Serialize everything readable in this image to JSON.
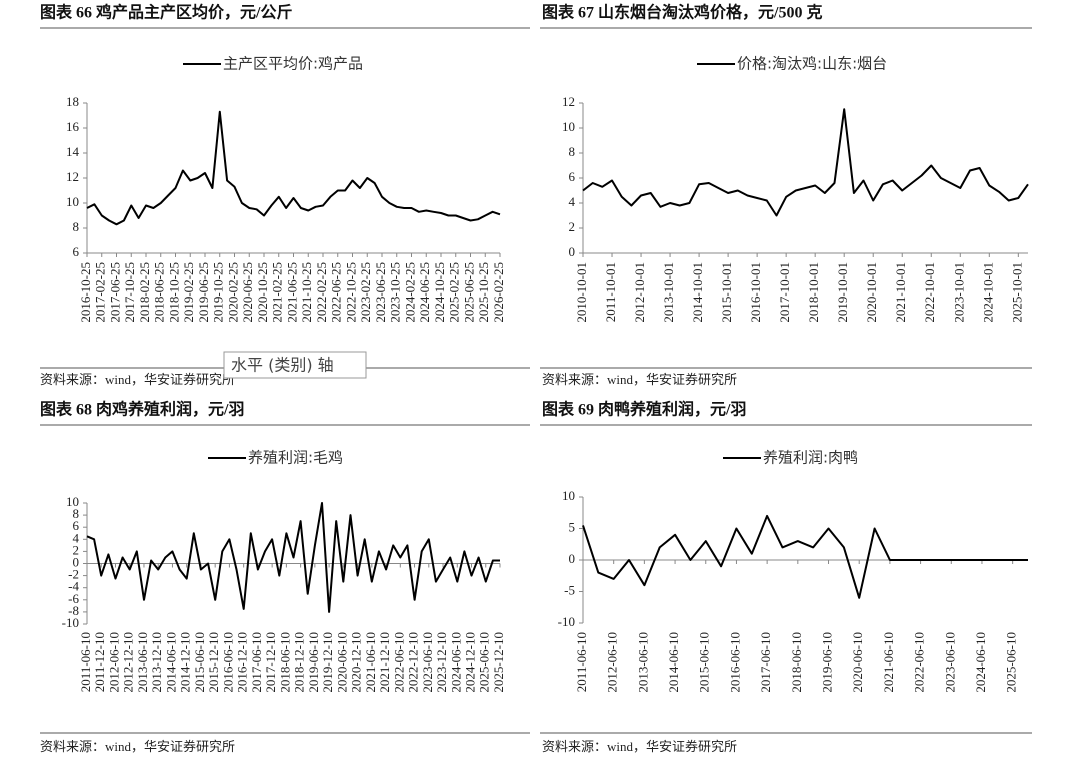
{
  "tooltip": "水平 (类别) 轴",
  "chart_data": [
    {
      "type": "line",
      "title": "图表 66 鸡产品主产区均价，元/公斤",
      "source": "资料来源：wind，华安证券研究所",
      "categories": [
        "2016-10-25",
        null,
        "2017-02-25",
        null,
        "2017-06-25",
        null,
        "2017-10-25",
        null,
        "2018-02-25",
        null,
        "2018-06-25",
        null,
        "2018-10-25",
        null,
        "2019-02-25",
        null,
        "2019-06-25",
        null,
        "2019-10-25",
        null,
        "2020-02-25",
        null,
        "2020-06-25",
        null,
        "2020-10-25",
        null,
        "2021-02-25",
        null,
        "2021-06-25",
        null,
        "2021-10-25",
        null,
        "2022-02-25",
        null,
        "2022-06-25",
        null,
        "2022-10-25",
        null,
        "2023-02-25",
        null,
        "2023-06-25",
        null,
        "2023-10-25",
        null,
        "2024-02-25",
        null,
        "2024-06-25",
        null,
        "2024-10-25",
        null,
        "2025-02-25",
        null,
        "2025-06-25",
        null,
        "2025-10-25",
        null,
        "2026-02-25"
      ],
      "series": [
        {
          "name": "主产区平均价:鸡产品",
          "color": "#000000",
          "values": [
            9.6,
            9.9,
            9.0,
            8.6,
            8.3,
            8.6,
            9.8,
            8.8,
            9.8,
            9.6,
            10.0,
            10.6,
            11.2,
            12.6,
            11.8,
            12.0,
            12.4,
            11.2,
            17.3,
            11.8,
            11.3,
            10.0,
            9.6,
            9.5,
            9.0,
            9.8,
            10.5,
            9.6,
            10.4,
            9.6,
            9.4,
            9.7,
            9.8,
            10.5,
            11.0,
            11.0,
            11.8,
            11.2,
            12.0,
            11.6,
            10.5,
            10.0,
            9.7,
            9.6,
            9.6,
            9.3,
            9.4,
            9.3,
            9.2,
            9.0,
            9.0,
            8.8,
            8.6,
            8.7,
            9.0,
            9.3,
            9.1
          ]
        }
      ],
      "ylim": [
        6,
        18
      ],
      "yticks": [
        6,
        8,
        10,
        12,
        14,
        16,
        18
      ]
    },
    {
      "type": "line",
      "title": "图表 67 山东烟台淘汰鸡价格，元/500 克",
      "source": "资料来源：wind，华安证券研究所",
      "categories": [
        "2010-10-01",
        null,
        null,
        "2011-10-01",
        null,
        null,
        "2012-10-01",
        null,
        null,
        "2013-10-01",
        null,
        null,
        "2014-10-01",
        null,
        null,
        "2015-10-01",
        null,
        null,
        "2016-10-01",
        null,
        null,
        "2017-10-01",
        null,
        null,
        "2018-10-01",
        null,
        null,
        "2019-10-01",
        null,
        null,
        "2020-10-01",
        null,
        null,
        "2021-10-01",
        null,
        null,
        "2022-10-01",
        null,
        null,
        "2023-10-01",
        null,
        null,
        "2024-10-01",
        null,
        null,
        "2025-10-01",
        null
      ],
      "series": [
        {
          "name": "价格:淘汰鸡:山东:烟台",
          "color": "#000000",
          "values": [
            5.0,
            5.6,
            5.3,
            5.8,
            4.5,
            3.8,
            4.6,
            4.8,
            3.7,
            4.0,
            3.8,
            4.0,
            5.5,
            5.6,
            5.2,
            4.8,
            5.0,
            4.6,
            4.4,
            4.2,
            3.0,
            4.5,
            5.0,
            5.2,
            5.4,
            4.8,
            5.6,
            11.5,
            4.8,
            5.8,
            4.2,
            5.5,
            5.8,
            5.0,
            5.6,
            6.2,
            7.0,
            6.0,
            5.6,
            5.2,
            6.6,
            6.8,
            5.4,
            4.9,
            4.2,
            4.4,
            5.5
          ]
        }
      ],
      "ylim": [
        0,
        12
      ],
      "yticks": [
        0,
        2,
        4,
        6,
        8,
        10,
        12
      ]
    },
    {
      "type": "line",
      "title": "图表 68 肉鸡养殖利润，元/羽",
      "source": "资料来源：wind，华安证券研究所",
      "categories": [
        "2011-06-10",
        null,
        "2011-12-10",
        null,
        "2012-06-10",
        null,
        "2012-12-10",
        null,
        "2013-06-10",
        null,
        "2013-12-10",
        null,
        "2014-06-10",
        null,
        "2014-12-10",
        null,
        "2015-06-10",
        null,
        "2015-12-10",
        null,
        "2016-06-10",
        null,
        "2016-12-10",
        null,
        "2017-06-10",
        null,
        "2017-12-10",
        null,
        "2018-06-10",
        null,
        "2018-12-10",
        null,
        "2019-06-10",
        null,
        "2019-12-10",
        null,
        "2020-06-10",
        null,
        "2020-12-10",
        null,
        "2021-06-10",
        null,
        "2021-12-10",
        null,
        "2022-06-10",
        null,
        "2022-12-10",
        null,
        "2023-06-10",
        null,
        "2023-12-10",
        null,
        "2024-06-10",
        null,
        "2024-12-10",
        null,
        "2025-06-10",
        null,
        "2025-12-10"
      ],
      "series": [
        {
          "name": "养殖利润:毛鸡",
          "color": "#000000",
          "values": [
            4.5,
            4.0,
            -2,
            1.5,
            -2.5,
            1,
            -1,
            2,
            -6,
            0.5,
            -1,
            1,
            2,
            -1,
            -2.5,
            5,
            -1,
            0,
            -6,
            2,
            4,
            -1,
            -7.5,
            5,
            -1,
            2,
            4,
            -2,
            5,
            1,
            7,
            -5,
            3,
            10,
            -8,
            7,
            -3,
            8,
            -2,
            4,
            -3,
            2,
            -1,
            3,
            1,
            3,
            -6,
            2,
            4,
            -3,
            -1,
            1,
            -3,
            2,
            -2,
            1,
            -3,
            0.5,
            0.5
          ]
        }
      ],
      "ylim": [
        -10,
        10
      ],
      "yticks": [
        -10,
        -8,
        -6,
        -4,
        -2,
        0,
        2,
        4,
        6,
        8,
        10
      ]
    },
    {
      "type": "line",
      "title": "图表 69 肉鸭养殖利润，元/羽",
      "source": "资料来源：wind，华安证券研究所",
      "categories": [
        "2011-06-10",
        null,
        "2012-06-10",
        null,
        "2013-06-10",
        null,
        "2014-06-10",
        null,
        "2015-06-10",
        null,
        "2016-06-10",
        null,
        "2017-06-10",
        null,
        "2018-06-10",
        null,
        "2019-06-10",
        null,
        "2020-06-10",
        null,
        "2021-06-10",
        null,
        "2022-06-10",
        null,
        "2023-06-10",
        null,
        "2024-06-10",
        null,
        "2025-06-10",
        null
      ],
      "series": [
        {
          "name": "养殖利润:肉鸭",
          "color": "#000000",
          "values": [
            5.5,
            -2,
            -3,
            0,
            -4,
            2,
            4,
            0,
            3,
            -1,
            5,
            1,
            7,
            2,
            3,
            2,
            5,
            2,
            -6,
            5,
            0,
            0,
            0,
            0,
            0,
            0,
            0,
            0,
            0,
            0
          ]
        }
      ],
      "ylim": [
        -10,
        10
      ],
      "yticks": [
        -10,
        -5,
        0,
        5,
        10
      ]
    }
  ]
}
